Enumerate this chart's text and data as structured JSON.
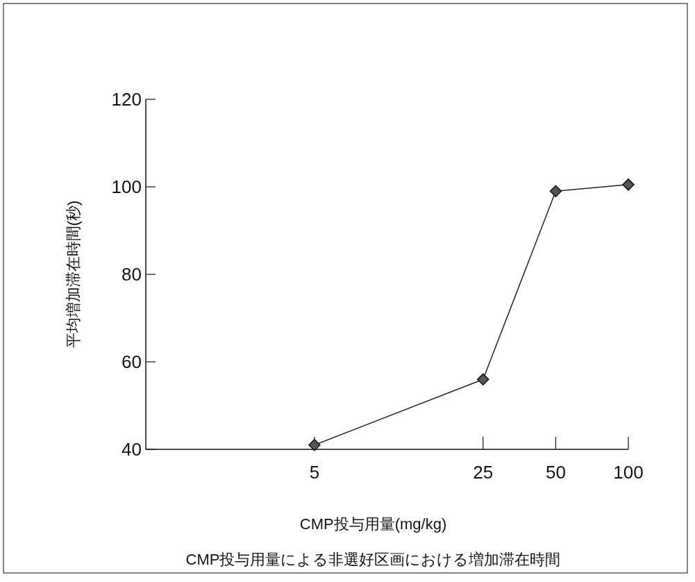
{
  "chart_data": {
    "type": "line",
    "title": "CMP投与用量による非選好区画における増加滞在時間",
    "xlabel": "CMP投与用量(mg/kg)",
    "ylabel": "平均増加滞在時間(秒)",
    "log": "x",
    "x": [
      5,
      25,
      50,
      100
    ],
    "series": [
      {
        "color": "#222222",
        "values": [
          41,
          56,
          99,
          100.5
        ]
      }
    ],
    "xlim": [
      1,
      100
    ],
    "xticks": [
      5,
      25,
      50,
      100
    ],
    "ylim": [
      40,
      120
    ],
    "yticks": [
      40,
      60,
      80,
      100,
      120
    ],
    "marker": "diamond",
    "line_style": "solid",
    "grid": false
  }
}
